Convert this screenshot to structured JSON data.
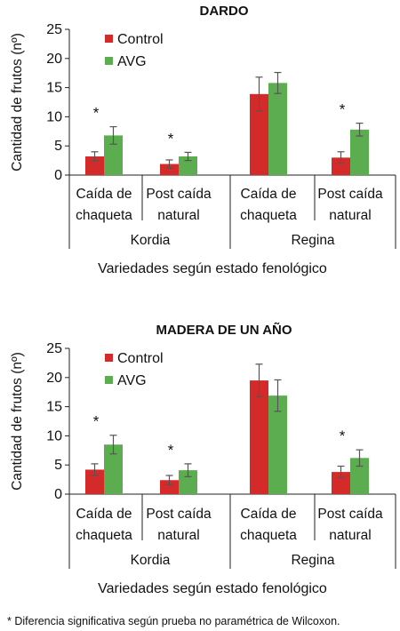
{
  "colors": {
    "control": "#d42a2a",
    "avg": "#5cad4f",
    "error": "#555555",
    "axis": "#222222"
  },
  "footnote": "* Diferencia significativa según prueba no paramétrica de Wilcoxon.",
  "chart_data": [
    {
      "type": "bar",
      "title": "DARDO",
      "ylabel": "Cantidad de frutos (nº)",
      "xlabel": "Variedades según estado fenológico",
      "ylim": [
        0,
        25
      ],
      "yticks": [
        "0",
        "5",
        "10",
        "15",
        "20",
        "25"
      ],
      "groups": [
        "Kordia",
        "Regina"
      ],
      "categories": [
        [
          "Caída de",
          "chaqueta"
        ],
        [
          "Post caída",
          "natural"
        ],
        [
          "Caída de",
          "chaqueta"
        ],
        [
          "Post caída",
          "natural"
        ]
      ],
      "legend": {
        "position": "top-left",
        "entries": [
          "Control",
          "AVG"
        ]
      },
      "series": [
        {
          "name": "Control",
          "values": [
            3.2,
            1.9,
            13.9,
            3.0
          ],
          "errors": [
            0.8,
            0.7,
            2.9,
            1.0
          ]
        },
        {
          "name": "AVG",
          "values": [
            6.8,
            3.2,
            15.8,
            7.8
          ],
          "errors": [
            1.5,
            0.7,
            1.8,
            1.1
          ]
        }
      ],
      "significant": [
        true,
        true,
        false,
        true
      ],
      "annotation": "*"
    },
    {
      "type": "bar",
      "title": "MADERA DE UN AÑO",
      "ylabel": "Cantidad de frutos (nº)",
      "xlabel": "Variedades según estado fenológico",
      "ylim": [
        0,
        25
      ],
      "yticks": [
        "0",
        "5",
        "10",
        "15",
        "20",
        "25"
      ],
      "groups": [
        "Kordia",
        "Regina"
      ],
      "categories": [
        [
          "Caída de",
          "chaqueta"
        ],
        [
          "Post caída",
          "natural"
        ],
        [
          "Caída de",
          "chaqueta"
        ],
        [
          "Post caída",
          "natural"
        ]
      ],
      "legend": {
        "position": "top-left",
        "entries": [
          "Control",
          "AVG"
        ]
      },
      "series": [
        {
          "name": "Control",
          "values": [
            4.2,
            2.4,
            19.5,
            3.8
          ],
          "errors": [
            1.0,
            0.8,
            2.8,
            1.0
          ]
        },
        {
          "name": "AVG",
          "values": [
            8.5,
            4.1,
            16.9,
            6.2
          ],
          "errors": [
            1.6,
            1.1,
            2.7,
            1.4
          ]
        }
      ],
      "significant": [
        true,
        true,
        false,
        true
      ],
      "annotation": "*"
    }
  ]
}
